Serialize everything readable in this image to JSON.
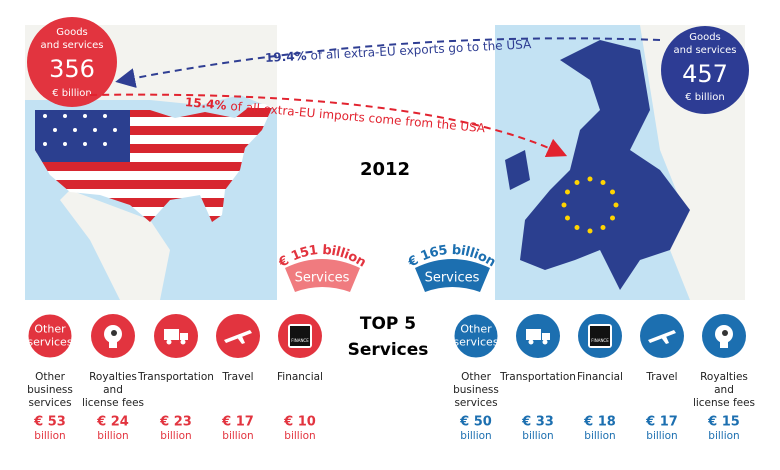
{
  "year": "2012",
  "left_circle": {
    "lines": [
      "Goods",
      "and services"
    ],
    "value": "356",
    "unit": "€ billion"
  },
  "right_circle": {
    "lines": [
      "Goods",
      "and services"
    ],
    "value": "457",
    "unit": "€ billion"
  },
  "arrows": [
    {
      "percent": "19.4%",
      "text": "of all extra-EU exports go to the USA"
    },
    {
      "percent": "15.4%",
      "text": "of all extra-EU imports come from the USA"
    }
  ],
  "badges": [
    {
      "amount": "€ 151 billion",
      "label": "Services"
    },
    {
      "amount": "€ 165 billion",
      "label": "Services"
    }
  ],
  "top_title": [
    "TOP 5",
    "Services"
  ],
  "left_items": [
    {
      "icon_text": [
        "Other",
        "services"
      ],
      "label": [
        "Other",
        "business",
        "services"
      ],
      "amount": "€ 53",
      "unit": "billion"
    },
    {
      "label": [
        "Royalties",
        "and",
        "license fees"
      ],
      "amount": "€ 24",
      "unit": "billion"
    },
    {
      "label": [
        "Transportation"
      ],
      "amount": "€ 23",
      "unit": "billion"
    },
    {
      "label": [
        "Travel"
      ],
      "amount": "€ 17",
      "unit": "billion"
    },
    {
      "icon_text": [
        "FINANCE"
      ],
      "label": [
        "Financial"
      ],
      "amount": "€ 10",
      "unit": "billion"
    }
  ],
  "right_items": [
    {
      "icon_text": [
        "Other",
        "services"
      ],
      "label": [
        "Other",
        "business",
        "services"
      ],
      "amount": "€ 50",
      "unit": "billion"
    },
    {
      "label": [
        "Transportation"
      ],
      "amount": "€ 33",
      "unit": "billion"
    },
    {
      "icon_text": [
        "FINANCE"
      ],
      "label": [
        "Financial"
      ],
      "amount": "€ 18",
      "unit": "billion"
    },
    {
      "label": [
        "Travel"
      ],
      "amount": "€ 17",
      "unit": "billion"
    },
    {
      "label": [
        "Royalties",
        "and",
        "license fees"
      ],
      "amount": "€ 15",
      "unit": "billion"
    }
  ]
}
